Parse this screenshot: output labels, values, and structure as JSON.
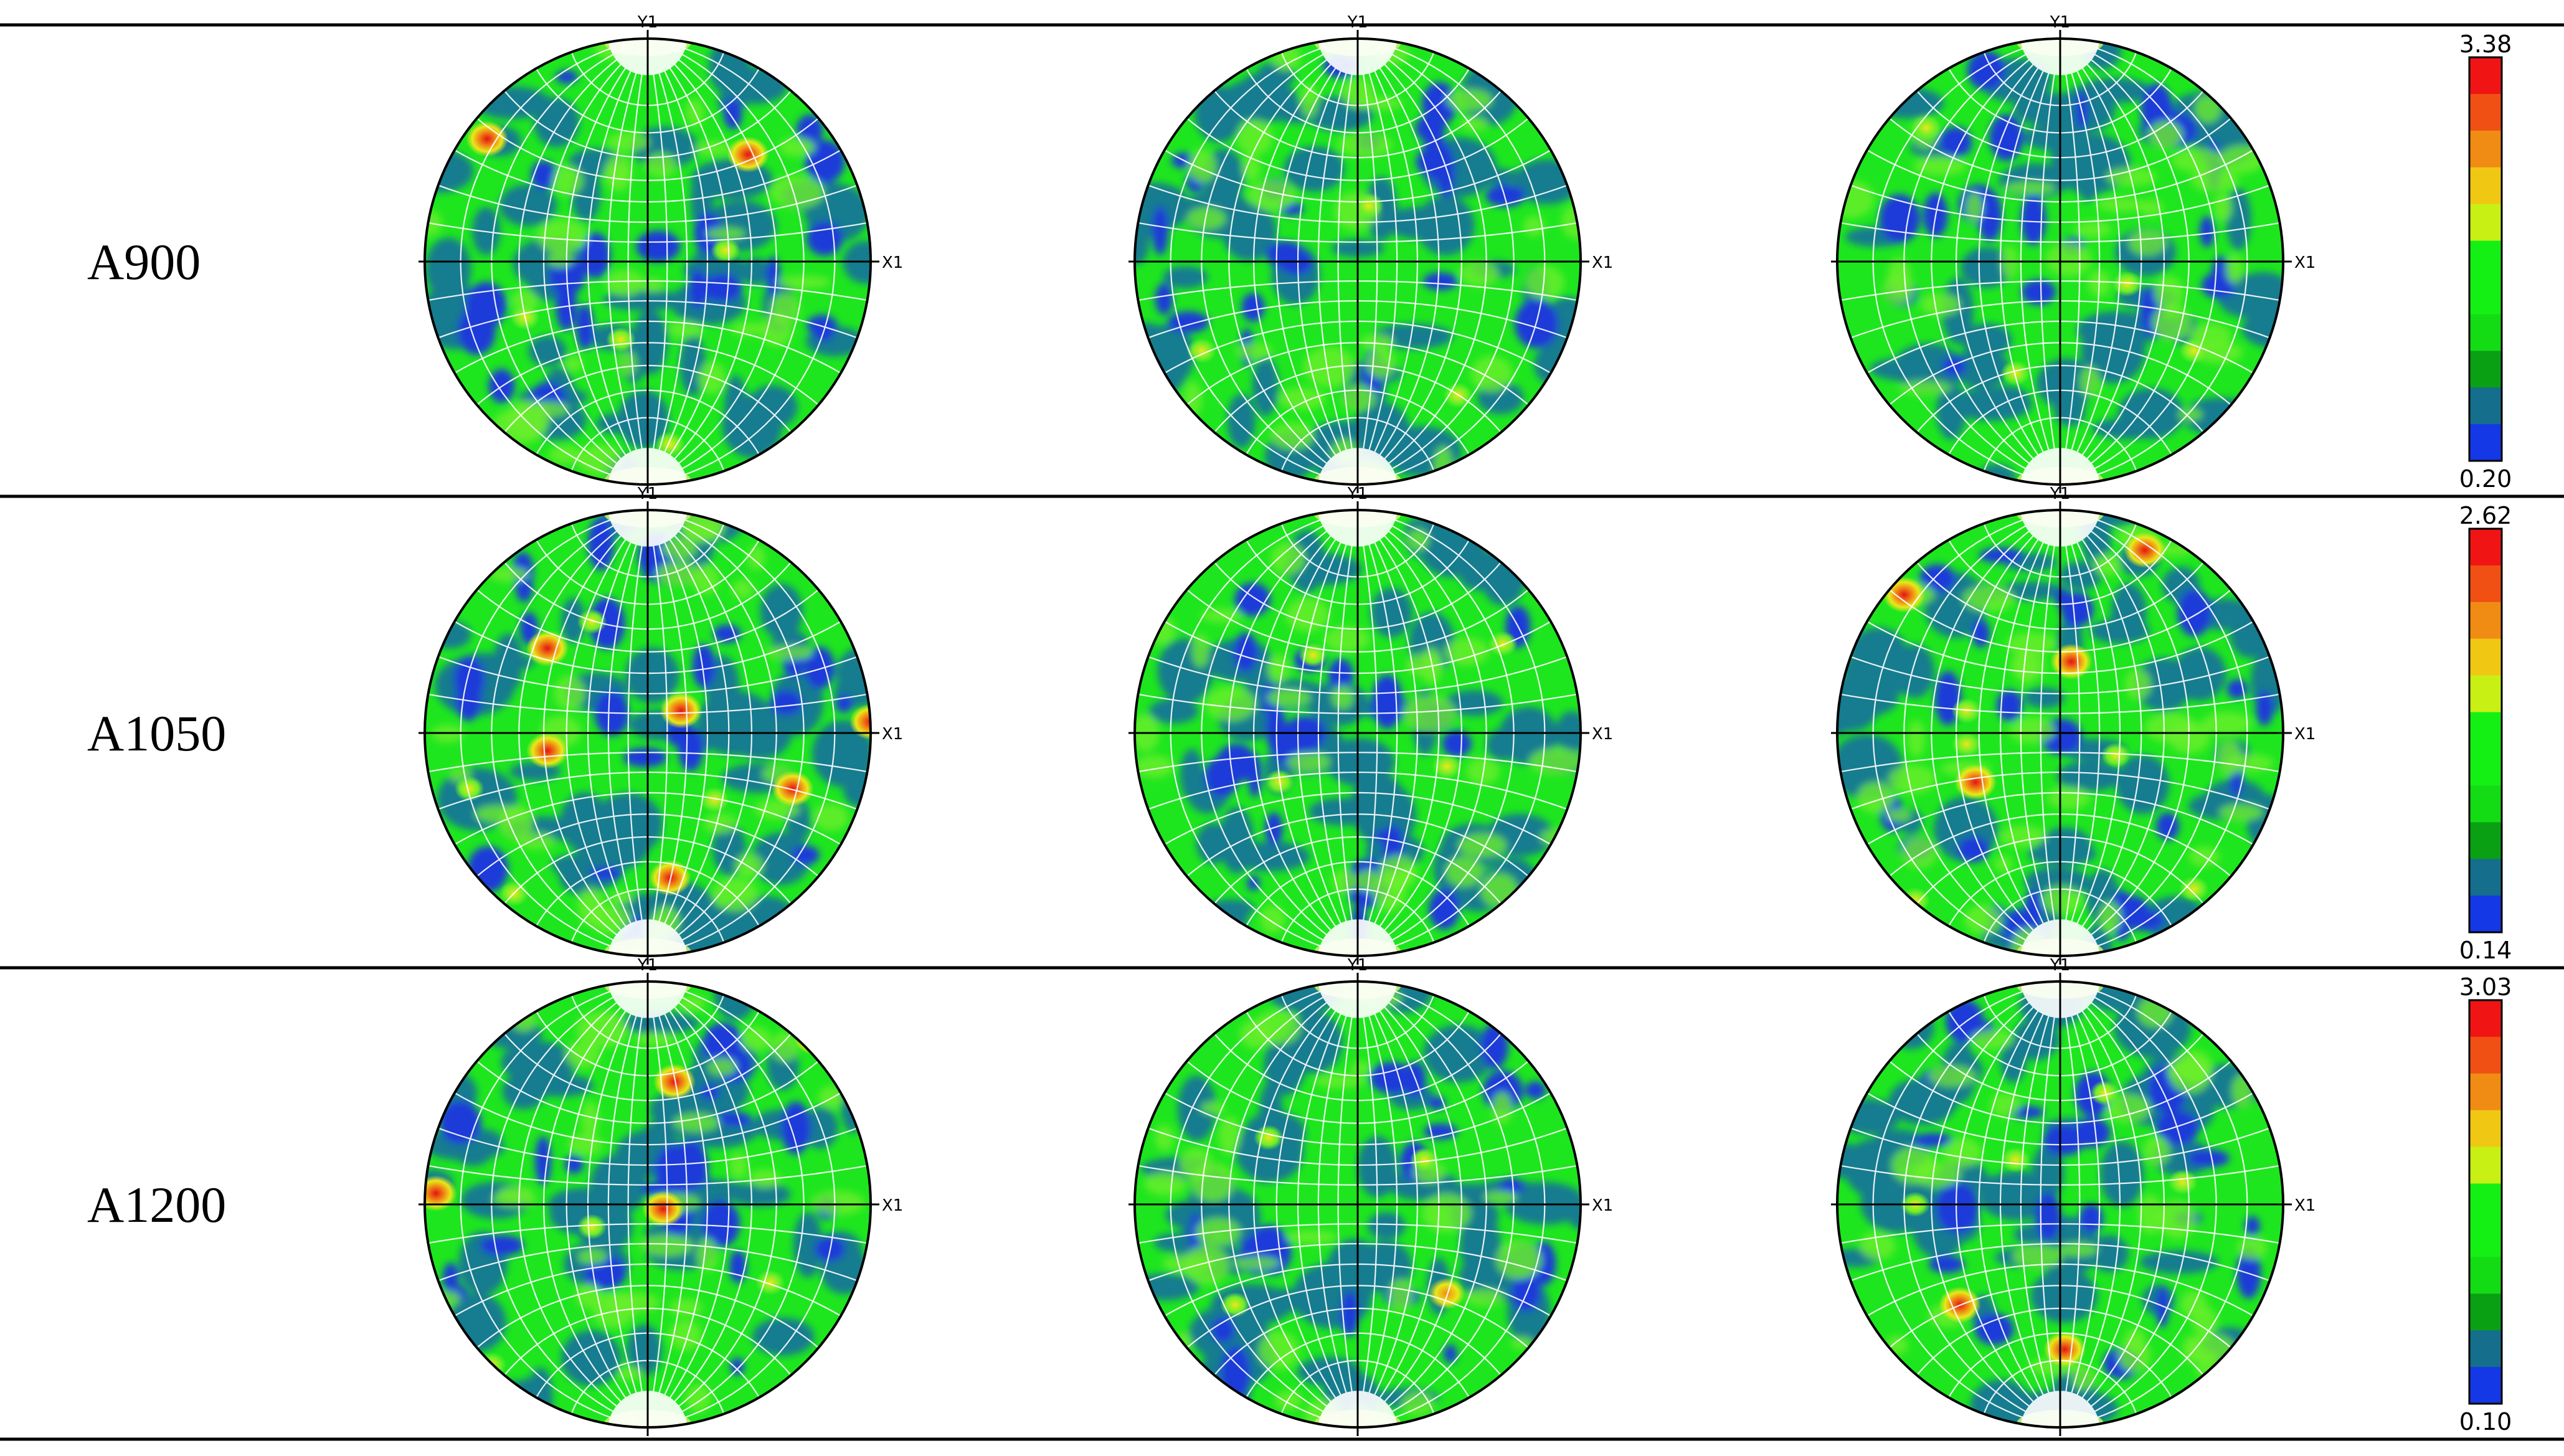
{
  "figure": {
    "rows": [
      {
        "label": "A900",
        "scale": {
          "max": "3.38",
          "min": "0.20"
        }
      },
      {
        "label": "A1050",
        "scale": {
          "max": "2.62",
          "min": "0.14"
        }
      },
      {
        "label": "A1200",
        "scale": {
          "max": "3.03",
          "min": "0.10"
        }
      }
    ],
    "axes": {
      "y_label": "Y1",
      "x_label": "X1"
    },
    "colorbar_colors": [
      "#1438e6",
      "#146e8c",
      "#0aa014",
      "#14dc14",
      "#14f014",
      "#14f014",
      "#c8f014",
      "#f0c814",
      "#f08c14",
      "#f05014",
      "#f01414"
    ],
    "palette": {
      "blue": "#1a3ad8",
      "teal": "#157b8f",
      "green": "#1ee61e",
      "light_green": "#6cef2a",
      "yellow": "#e8e81a",
      "orange": "#f08a14",
      "red": "#e41414",
      "grid": "#ffffff",
      "frame": "#000000"
    },
    "hotspots": [
      [
        [
          [
            -0.72,
            -0.55,
            "r"
          ],
          [
            0.45,
            -0.48,
            "r"
          ],
          [
            -0.12,
            0.35,
            "y"
          ],
          [
            -0.55,
            0.25,
            "y"
          ],
          [
            0.1,
            0.82,
            "y"
          ],
          [
            0.35,
            -0.05,
            "y"
          ]
        ],
        [
          [
            0.05,
            -0.25,
            "y"
          ],
          [
            -0.7,
            0.4,
            "y"
          ],
          [
            0.45,
            0.6,
            "y"
          ]
        ],
        [
          [
            -0.6,
            -0.6,
            "y"
          ],
          [
            0.3,
            0.1,
            "y"
          ],
          [
            -0.2,
            0.5,
            "y"
          ],
          [
            0.6,
            0.4,
            "y"
          ]
        ]
      ],
      [
        [
          [
            -0.45,
            -0.38,
            "r"
          ],
          [
            -0.25,
            -0.5,
            "y"
          ],
          [
            0.15,
            -0.1,
            "r"
          ],
          [
            -0.45,
            0.08,
            "r"
          ],
          [
            -0.8,
            0.25,
            "y"
          ],
          [
            0.65,
            0.25,
            "r"
          ],
          [
            1.0,
            -0.05,
            "r"
          ],
          [
            0.1,
            0.65,
            "r"
          ],
          [
            -0.6,
            0.72,
            "y"
          ],
          [
            0.3,
            0.3,
            "y"
          ]
        ],
        [
          [
            -0.35,
            0.22,
            "y"
          ],
          [
            0.65,
            -0.4,
            "y"
          ],
          [
            -0.2,
            -0.35,
            "y"
          ],
          [
            0.4,
            0.15,
            "y"
          ]
        ],
        [
          [
            -0.7,
            -0.62,
            "r"
          ],
          [
            0.38,
            -0.82,
            "r"
          ],
          [
            -0.42,
            0.05,
            "y"
          ],
          [
            -0.42,
            -0.1,
            "y"
          ],
          [
            -0.38,
            0.22,
            "r"
          ],
          [
            0.05,
            -0.32,
            "r"
          ],
          [
            0.6,
            0.7,
            "y"
          ],
          [
            0.25,
            0.1,
            "y"
          ],
          [
            -0.65,
            0.75,
            "y"
          ]
        ]
      ],
      [
        [
          [
            -0.95,
            -0.05,
            "r"
          ],
          [
            0.07,
            0.02,
            "r"
          ],
          [
            0.12,
            -0.55,
            "r"
          ],
          [
            0.75,
            -0.75,
            "r"
          ],
          [
            -0.7,
            0.72,
            "y"
          ],
          [
            -0.25,
            0.1,
            "y"
          ],
          [
            0.55,
            0.35,
            "y"
          ]
        ],
        [
          [
            0.4,
            0.4,
            "o"
          ],
          [
            0.3,
            -0.2,
            "y"
          ],
          [
            -0.4,
            -0.3,
            "y"
          ],
          [
            -0.55,
            0.45,
            "y"
          ]
        ],
        [
          [
            -0.45,
            0.45,
            "r"
          ],
          [
            0.02,
            0.65,
            "r"
          ],
          [
            -0.65,
            0.0,
            "y"
          ],
          [
            0.2,
            -0.5,
            "y"
          ],
          [
            0.55,
            -0.1,
            "y"
          ],
          [
            -0.2,
            -0.2,
            "y"
          ]
        ]
      ]
    ]
  }
}
